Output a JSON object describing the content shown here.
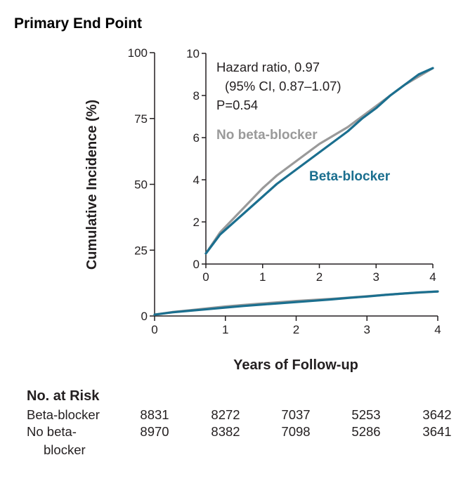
{
  "figure": {
    "title": "Primary End Point"
  },
  "chart_data": [
    {
      "type": "line",
      "name": "main",
      "xlabel": "Years of Follow-up",
      "ylabel": "Cumulative Incidence (%)",
      "xlim": [
        0,
        4
      ],
      "ylim": [
        0,
        100
      ],
      "xticks": [
        "0",
        "1",
        "2",
        "3",
        "4"
      ],
      "yticks": [
        "0",
        "25",
        "50",
        "75",
        "100"
      ],
      "grid": false,
      "series": [
        {
          "x": [
            0,
            0.25,
            0.5,
            0.75,
            1,
            1.25,
            1.5,
            1.75,
            2,
            2.25,
            2.5,
            2.75,
            3,
            3.25,
            3.5,
            3.75,
            4
          ],
          "values": [
            0.5,
            1.4,
            2.0,
            2.6,
            3.2,
            3.8,
            4.3,
            4.8,
            5.3,
            5.8,
            6.3,
            6.9,
            7.4,
            8.0,
            8.5,
            9.0,
            9.3
          ],
          "color": "#1b6f8f"
        },
        {
          "x": [
            0,
            0.25,
            0.5,
            0.75,
            1,
            1.25,
            1.5,
            1.75,
            2,
            2.25,
            2.5,
            2.75,
            3,
            3.25,
            3.5,
            3.75,
            4
          ],
          "values": [
            0.5,
            1.5,
            2.2,
            2.9,
            3.6,
            4.2,
            4.7,
            5.2,
            5.7,
            6.1,
            6.5,
            7.0,
            7.5,
            8.0,
            8.5,
            8.9,
            9.3
          ],
          "color": "#9a9a9a"
        }
      ]
    },
    {
      "type": "line",
      "name": "inset",
      "xlim": [
        0,
        4
      ],
      "ylim": [
        0,
        10
      ],
      "xticks": [
        "0",
        "1",
        "2",
        "3",
        "4"
      ],
      "yticks": [
        "0",
        "2",
        "4",
        "6",
        "8",
        "10"
      ],
      "annotations": [
        "Hazard ratio, 0.97",
        "(95% CI, 0.87–1.07)",
        "P=0.54"
      ],
      "series": [
        {
          "name": "Beta-blocker",
          "x": [
            0,
            0.25,
            0.5,
            0.75,
            1,
            1.25,
            1.5,
            1.75,
            2,
            2.25,
            2.5,
            2.75,
            3,
            3.25,
            3.5,
            3.75,
            4
          ],
          "values": [
            0.5,
            1.4,
            2.0,
            2.6,
            3.2,
            3.8,
            4.3,
            4.8,
            5.3,
            5.8,
            6.3,
            6.9,
            7.4,
            8.0,
            8.5,
            9.0,
            9.3
          ],
          "color": "#1b6f8f"
        },
        {
          "name": "No beta-blocker",
          "x": [
            0,
            0.25,
            0.5,
            0.75,
            1,
            1.25,
            1.5,
            1.75,
            2,
            2.25,
            2.5,
            2.75,
            3,
            3.25,
            3.5,
            3.75,
            4
          ],
          "values": [
            0.5,
            1.5,
            2.2,
            2.9,
            3.6,
            4.2,
            4.7,
            5.2,
            5.7,
            6.1,
            6.5,
            7.0,
            7.5,
            8.0,
            8.5,
            8.9,
            9.3
          ],
          "color": "#9a9a9a"
        }
      ]
    },
    {
      "type": "table",
      "name": "risk",
      "title": "No. at Risk",
      "rows": [
        {
          "label": [
            "Beta-blocker"
          ],
          "values": [
            "8831",
            "8272",
            "7037",
            "5253",
            "3642"
          ]
        },
        {
          "label": [
            "No beta-",
            "blocker"
          ],
          "values": [
            "8970",
            "8382",
            "7098",
            "5286",
            "3641"
          ]
        }
      ]
    }
  ]
}
